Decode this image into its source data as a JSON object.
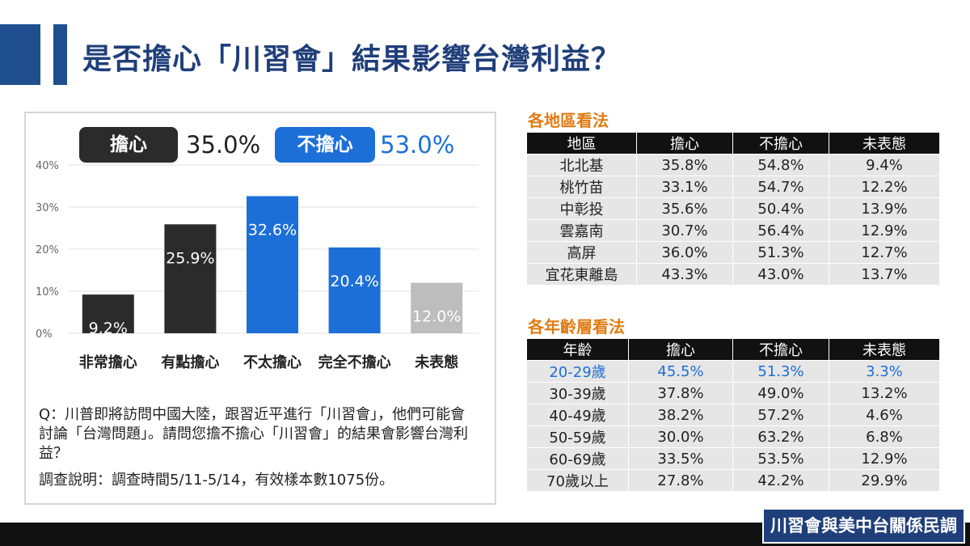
{
  "title": "是否擔心「川習會」結果影響台灣利益？",
  "legend": {
    "worried_label": "擔心",
    "worried_value": "35.0%",
    "not_worried_label": "不擔心",
    "not_worried_value": "53.0%"
  },
  "chart_data": {
    "type": "bar",
    "categories": [
      "非常擔心",
      "有點擔心",
      "不太擔心",
      "完全不擔心",
      "未表態"
    ],
    "values": [
      9.2,
      25.9,
      32.6,
      20.4,
      12.0
    ],
    "value_labels": [
      "9.2%",
      "25.9%",
      "32.6%",
      "20.4%",
      "12.0%"
    ],
    "colors": [
      "#2b2b2b",
      "#2b2b2b",
      "#1d6fd8",
      "#1d6fd8",
      "#bdbdbd"
    ],
    "yticks": [
      "0%",
      "10%",
      "20%",
      "30%",
      "40%"
    ],
    "ylim": [
      0,
      40
    ],
    "grid": true,
    "title": "",
    "xlabel": "",
    "ylabel": ""
  },
  "question": "Q：川普即將訪問中國大陸，跟習近平進行「川習會」，他們可能會討論「台灣問題」。請問您擔不擔心「川習會」的結果會影響台灣利益？",
  "survey_note": "調查說明：調查時間5/11-5/14，有效樣本數1075份。",
  "region_table": {
    "title": "各地區看法",
    "headers": [
      "地區",
      "擔心",
      "不擔心",
      "未表態"
    ],
    "rows": [
      [
        "北北基",
        "35.8%",
        "54.8%",
        "9.4%"
      ],
      [
        "桃竹苗",
        "33.1%",
        "54.7%",
        "12.2%"
      ],
      [
        "中彰投",
        "35.6%",
        "50.4%",
        "13.9%"
      ],
      [
        "雲嘉南",
        "30.7%",
        "56.4%",
        "12.9%"
      ],
      [
        "高屏",
        "36.0%",
        "51.3%",
        "12.7%"
      ],
      [
        "宜花東離島",
        "43.3%",
        "43.0%",
        "13.7%"
      ]
    ]
  },
  "age_table": {
    "title": "各年齡層看法",
    "headers": [
      "年齡",
      "擔心",
      "不擔心",
      "未表態"
    ],
    "rows": [
      [
        "20-29歲",
        "45.5%",
        "51.3%",
        "3.3%"
      ],
      [
        "30-39歲",
        "37.8%",
        "49.0%",
        "13.2%"
      ],
      [
        "40-49歲",
        "38.2%",
        "57.2%",
        "4.6%"
      ],
      [
        "50-59歲",
        "30.0%",
        "63.2%",
        "6.8%"
      ],
      [
        "60-69歲",
        "33.5%",
        "53.5%",
        "12.9%"
      ],
      [
        "70歲以上",
        "27.8%",
        "42.2%",
        "29.9%"
      ]
    ],
    "highlight_row": 0,
    "highlight_color": "#1d6fd8"
  },
  "footer_label": "川習會與美中台關係民調"
}
